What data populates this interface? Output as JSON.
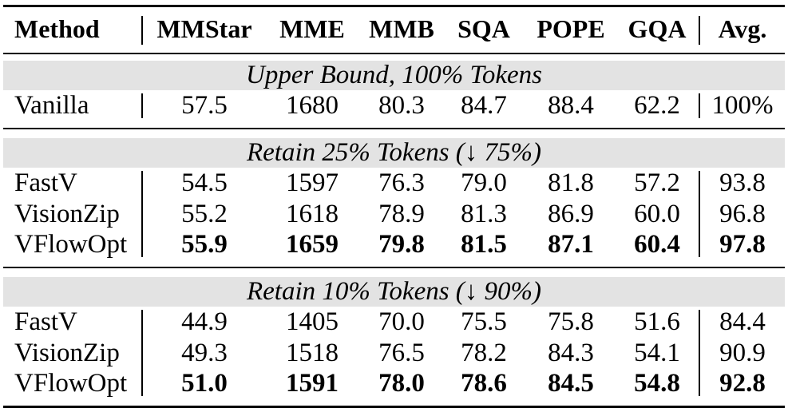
{
  "table": {
    "header": [
      "Method",
      "MMStar",
      "MME",
      "MMB",
      "SQA",
      "POPE",
      "GQA",
      "Avg."
    ],
    "sections": [
      {
        "title": "Upper Bound, 100% Tokens",
        "rows": [
          {
            "method": "Vanilla",
            "values": [
              "57.5",
              "1680",
              "80.3",
              "84.7",
              "88.4",
              "62.2",
              "100%"
            ],
            "bold": false
          }
        ]
      },
      {
        "title": "Retain 25% Tokens (↓ 75%)",
        "rows": [
          {
            "method": "FastV",
            "values": [
              "54.5",
              "1597",
              "76.3",
              "79.0",
              "81.8",
              "57.2",
              "93.8"
            ],
            "bold": false
          },
          {
            "method": "VisionZip",
            "values": [
              "55.2",
              "1618",
              "78.9",
              "81.3",
              "86.9",
              "60.0",
              "96.8"
            ],
            "bold": false
          },
          {
            "method": "VFlowOpt",
            "values": [
              "55.9",
              "1659",
              "79.8",
              "81.5",
              "87.1",
              "60.4",
              "97.8"
            ],
            "bold": true
          }
        ]
      },
      {
        "title": "Retain 10% Tokens (↓ 90%)",
        "rows": [
          {
            "method": "FastV",
            "values": [
              "44.9",
              "1405",
              "70.0",
              "75.5",
              "75.8",
              "51.6",
              "84.4"
            ],
            "bold": false
          },
          {
            "method": "VisionZip",
            "values": [
              "49.3",
              "1518",
              "76.5",
              "78.2",
              "84.3",
              "54.1",
              "90.9"
            ],
            "bold": false
          },
          {
            "method": "VFlowOpt",
            "values": [
              "51.0",
              "1591",
              "78.0",
              "78.6",
              "84.5",
              "54.8",
              "92.8"
            ],
            "bold": true
          }
        ]
      }
    ]
  }
}
